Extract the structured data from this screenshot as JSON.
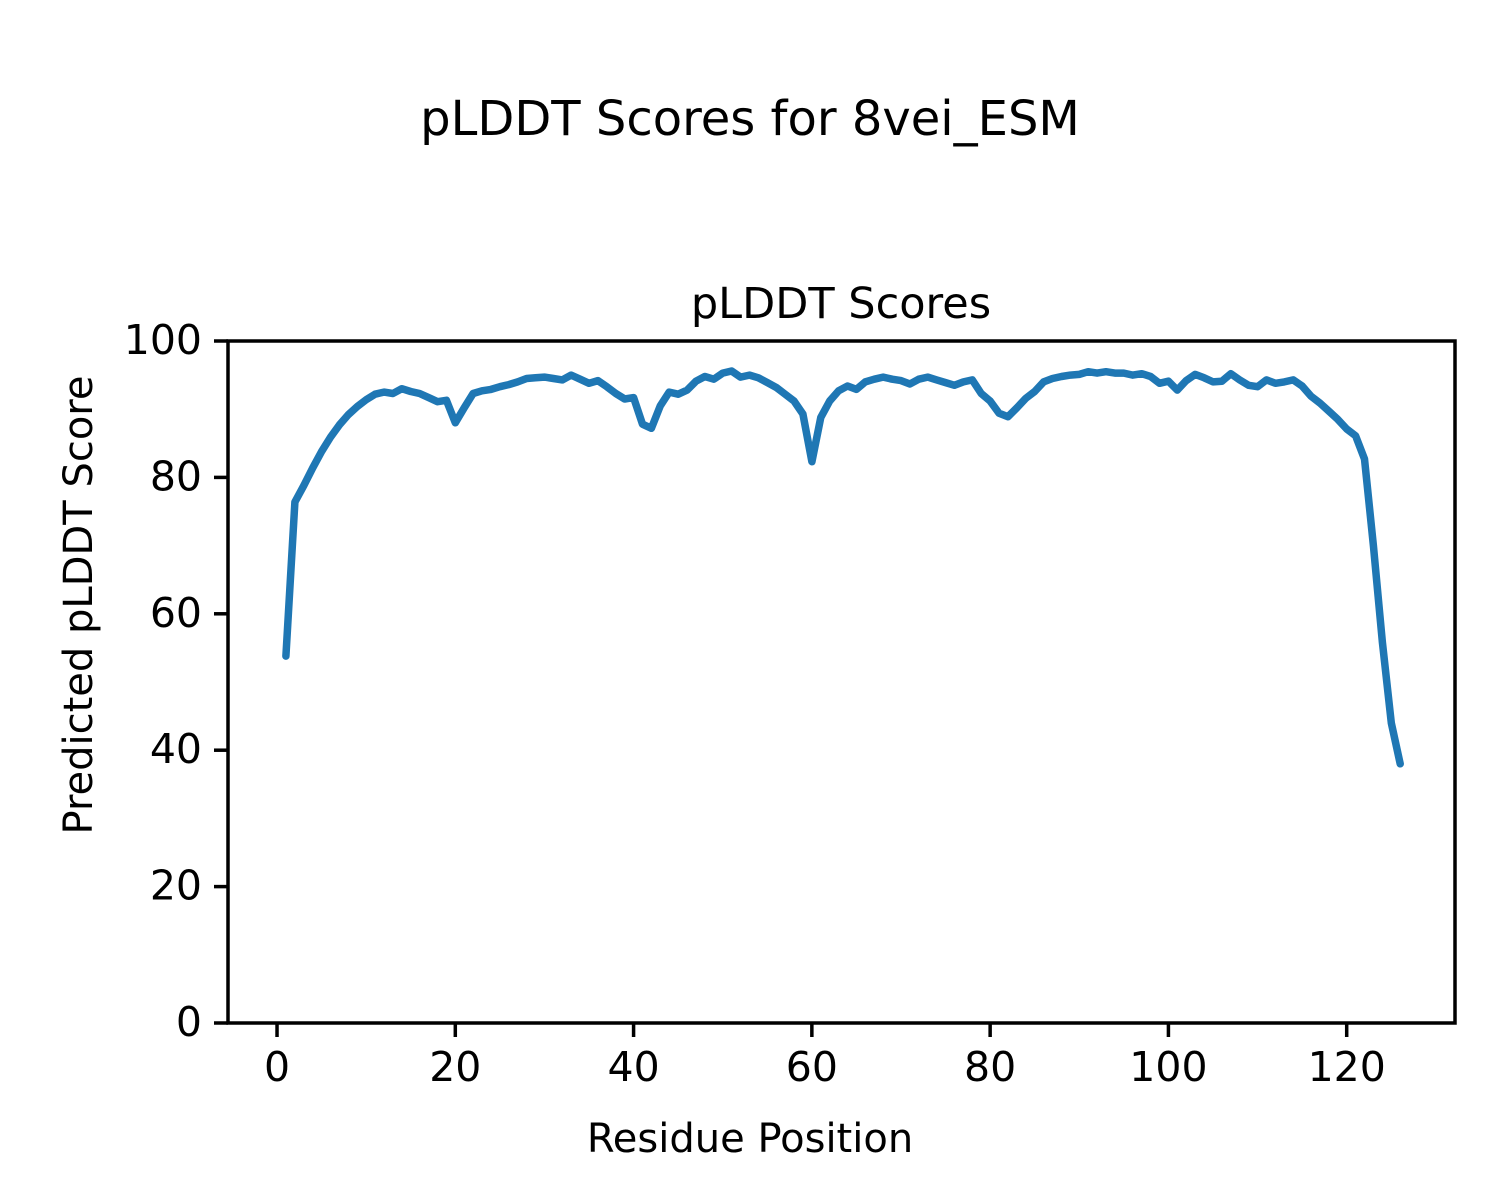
{
  "figure": {
    "suptitle": "pLDDT Scores for 8vei_ESM",
    "background": "#ffffff",
    "text_color": "#000000"
  },
  "chart_data": {
    "type": "line",
    "title": "pLDDT Scores",
    "xlabel": "Residue Position",
    "ylabel": "Predicted pLDDT Score",
    "xlim": [
      -5.5,
      132.15
    ],
    "ylim": [
      0,
      100
    ],
    "xticks": [
      0,
      20,
      40,
      60,
      80,
      100,
      120
    ],
    "yticks": [
      0,
      20,
      40,
      60,
      80,
      100
    ],
    "grid": false,
    "legend": null,
    "line_color": "#1f77b4",
    "spine_color": "#000000",
    "x": [
      1,
      2,
      3,
      4,
      5,
      6,
      7,
      8,
      9,
      10,
      11,
      12,
      13,
      14,
      15,
      16,
      17,
      18,
      19,
      20,
      21,
      22,
      23,
      24,
      25,
      26,
      27,
      28,
      29,
      30,
      31,
      32,
      33,
      34,
      35,
      36,
      37,
      38,
      39,
      40,
      41,
      42,
      43,
      44,
      45,
      46,
      47,
      48,
      49,
      50,
      51,
      52,
      53,
      54,
      55,
      56,
      57,
      58,
      59,
      60,
      61,
      62,
      63,
      64,
      65,
      66,
      67,
      68,
      69,
      70,
      71,
      72,
      73,
      74,
      75,
      76,
      77,
      78,
      79,
      80,
      81,
      82,
      83,
      84,
      85,
      86,
      87,
      88,
      89,
      90,
      91,
      92,
      93,
      94,
      95,
      96,
      97,
      98,
      99,
      100,
      101,
      102,
      103,
      104,
      105,
      106,
      107,
      108,
      109,
      110,
      111,
      112,
      113,
      114,
      115,
      116,
      117,
      118,
      119,
      120,
      121,
      122,
      123,
      124,
      125,
      126
    ],
    "y": [
      53.8,
      76.4,
      78.8,
      81.4,
      83.8,
      85.9,
      87.7,
      89.2,
      90.4,
      91.4,
      92.2,
      92.5,
      92.3,
      93.0,
      92.6,
      92.3,
      91.7,
      91.1,
      91.3,
      88.0,
      90.2,
      92.3,
      92.7,
      92.9,
      93.3,
      93.6,
      94.0,
      94.5,
      94.6,
      94.7,
      94.5,
      94.3,
      95.0,
      94.4,
      93.8,
      94.2,
      93.3,
      92.3,
      91.5,
      91.7,
      87.8,
      87.2,
      90.5,
      92.5,
      92.2,
      92.8,
      94.1,
      94.8,
      94.4,
      95.3,
      95.6,
      94.7,
      95.0,
      94.6,
      93.9,
      93.2,
      92.2,
      91.2,
      89.3,
      82.3,
      88.8,
      91.2,
      92.7,
      93.4,
      92.9,
      94.0,
      94.4,
      94.7,
      94.4,
      94.2,
      93.7,
      94.4,
      94.7,
      94.3,
      93.9,
      93.5,
      94.0,
      94.3,
      92.3,
      91.2,
      89.4,
      88.9,
      90.2,
      91.6,
      92.6,
      94.0,
      94.5,
      94.8,
      95.0,
      95.1,
      95.5,
      95.3,
      95.5,
      95.3,
      95.3,
      95.0,
      95.2,
      94.8,
      93.8,
      94.1,
      92.8,
      94.2,
      95.1,
      94.6,
      94.0,
      94.1,
      95.2,
      94.3,
      93.5,
      93.3,
      94.3,
      93.8,
      94.0,
      94.3,
      93.4,
      91.9,
      90.9,
      89.7,
      88.5,
      87.1,
      86.1,
      82.7,
      70.0,
      55.8,
      44.0,
      38.0
    ]
  }
}
